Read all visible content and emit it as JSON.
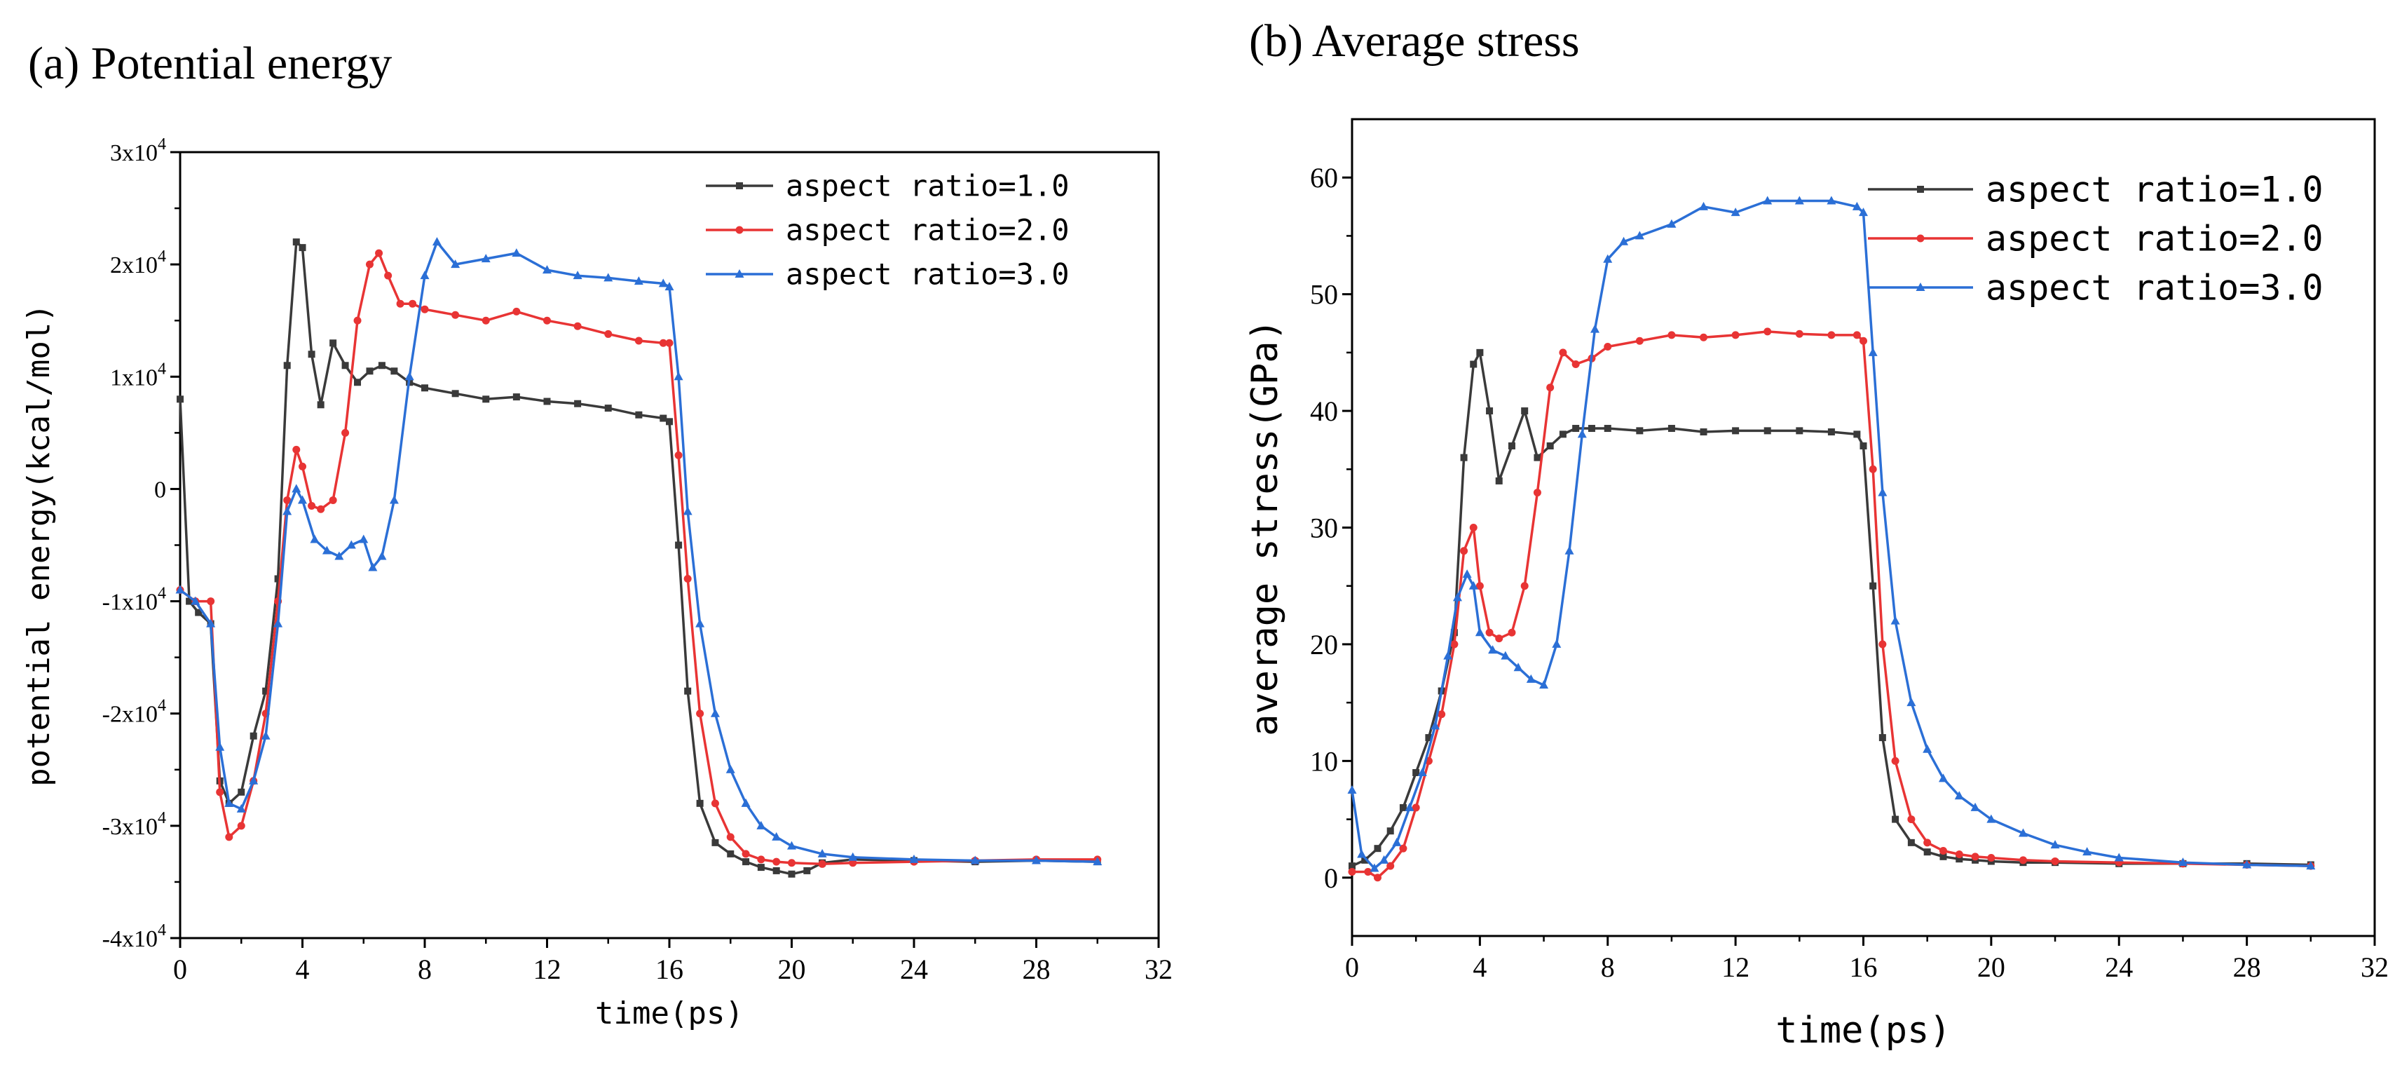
{
  "colors": {
    "series1": "#3a3a3a",
    "series2": "#e83434",
    "series3": "#2b6fd6"
  },
  "chart_data": [
    {
      "type": "line",
      "title": "(a) Potential energy",
      "xlabel": "time(ps)",
      "ylabel": "potential energy(kcal/mol)",
      "xlim": [
        0,
        32
      ],
      "ylim": [
        -40000,
        30000
      ],
      "xticks": [
        0,
        4,
        8,
        12,
        16,
        20,
        24,
        28,
        32
      ],
      "xtick_labels": [
        "0",
        "4",
        "8",
        "12",
        "16",
        "20",
        "24",
        "28",
        "32"
      ],
      "yticks": [
        -40000,
        -30000,
        -20000,
        -10000,
        0,
        10000,
        20000,
        30000
      ],
      "ytick_labels": [
        {
          "base": "-4x10",
          "exp": "4"
        },
        {
          "base": "-3x10",
          "exp": "4"
        },
        {
          "base": "-2x10",
          "exp": "4"
        },
        {
          "base": "-1x10",
          "exp": "4"
        },
        {
          "base": "0",
          "exp": ""
        },
        {
          "base": "1x10",
          "exp": "4"
        },
        {
          "base": "2x10",
          "exp": "4"
        },
        {
          "base": "3x10",
          "exp": "4"
        }
      ],
      "legend_position": "top-right",
      "series": [
        {
          "name": "aspect ratio=1.0",
          "x": [
            0,
            0.3,
            0.6,
            1.0,
            1.3,
            1.6,
            2.0,
            2.4,
            2.8,
            3.2,
            3.5,
            3.8,
            4.0,
            4.3,
            4.6,
            5.0,
            5.4,
            5.8,
            6.2,
            6.6,
            7.0,
            7.5,
            8,
            9,
            10,
            11,
            12,
            13,
            14,
            15,
            15.8,
            16.0,
            16.3,
            16.6,
            17.0,
            17.5,
            18,
            18.5,
            19,
            19.5,
            20,
            20.5,
            21,
            22,
            24,
            26,
            28,
            30
          ],
          "y": [
            8000,
            -10000,
            -11000,
            -12000,
            -26000,
            -28000,
            -27000,
            -22000,
            -18000,
            -8000,
            11000,
            22000,
            21500,
            12000,
            7500,
            13000,
            11000,
            9500,
            10500,
            11000,
            10500,
            9500,
            9000,
            8500,
            8000,
            8200,
            7800,
            7600,
            7200,
            6600,
            6300,
            6000,
            -5000,
            -18000,
            -28000,
            -31500,
            -32500,
            -33200,
            -33700,
            -34000,
            -34300,
            -34000,
            -33300,
            -33000,
            -33100,
            -33200,
            -33100,
            -33200
          ]
        },
        {
          "name": "aspect ratio=2.0",
          "x": [
            0,
            0.5,
            1.0,
            1.3,
            1.6,
            2.0,
            2.4,
            2.8,
            3.2,
            3.5,
            3.8,
            4.0,
            4.3,
            4.6,
            5.0,
            5.4,
            5.8,
            6.2,
            6.5,
            6.8,
            7.2,
            7.6,
            8,
            9,
            10,
            11,
            12,
            13,
            14,
            15,
            15.8,
            16.0,
            16.3,
            16.6,
            17.0,
            17.5,
            18,
            18.5,
            19,
            19.5,
            20,
            21,
            22,
            24,
            26,
            28,
            30
          ],
          "y": [
            -9000,
            -10000,
            -10000,
            -27000,
            -31000,
            -30000,
            -26000,
            -20000,
            -10000,
            -1000,
            3500,
            2000,
            -1500,
            -1800,
            -1000,
            5000,
            15000,
            20000,
            21000,
            19000,
            16500,
            16500,
            16000,
            15500,
            15000,
            15800,
            15000,
            14500,
            13800,
            13200,
            13000,
            13000,
            3000,
            -8000,
            -20000,
            -28000,
            -31000,
            -32500,
            -33000,
            -33200,
            -33300,
            -33400,
            -33300,
            -33200,
            -33100,
            -33000,
            -33000
          ]
        },
        {
          "name": "aspect ratio=3.0",
          "x": [
            0,
            0.5,
            1.0,
            1.3,
            1.6,
            2.0,
            2.4,
            2.8,
            3.2,
            3.5,
            3.8,
            4.0,
            4.4,
            4.8,
            5.2,
            5.6,
            6.0,
            6.3,
            6.6,
            7.0,
            7.5,
            8.0,
            8.4,
            9,
            10,
            11,
            12,
            13,
            14,
            15,
            15.8,
            16.0,
            16.3,
            16.6,
            17.0,
            17.5,
            18,
            18.5,
            19,
            19.5,
            20,
            21,
            22,
            24,
            26,
            28,
            30
          ],
          "y": [
            -9000,
            -10000,
            -12000,
            -23000,
            -28000,
            -28500,
            -26000,
            -22000,
            -12000,
            -2000,
            0,
            -1000,
            -4500,
            -5500,
            -6000,
            -5000,
            -4500,
            -7000,
            -6000,
            -1000,
            10000,
            19000,
            22000,
            20000,
            20500,
            21000,
            19500,
            19000,
            18800,
            18500,
            18300,
            18000,
            10000,
            -2000,
            -12000,
            -20000,
            -25000,
            -28000,
            -30000,
            -31000,
            -31800,
            -32500,
            -32800,
            -33000,
            -33100,
            -33100,
            -33200
          ]
        }
      ]
    },
    {
      "type": "line",
      "title": "(b) Average stress",
      "xlabel": "time(ps)",
      "ylabel": "average stress(GPa)",
      "xlim": [
        0,
        32
      ],
      "ylim": [
        -5,
        65
      ],
      "xticks": [
        0,
        4,
        8,
        12,
        16,
        20,
        24,
        28,
        32
      ],
      "xtick_labels": [
        "0",
        "4",
        "8",
        "12",
        "16",
        "20",
        "24",
        "28",
        "32"
      ],
      "yticks": [
        0,
        10,
        20,
        30,
        40,
        50,
        60
      ],
      "ytick_labels": [
        "0",
        "10",
        "20",
        "30",
        "40",
        "50",
        "60"
      ],
      "legend_position": "top-right",
      "series": [
        {
          "name": "aspect ratio=1.0",
          "x": [
            0,
            0.4,
            0.8,
            1.2,
            1.6,
            2.0,
            2.4,
            2.8,
            3.2,
            3.5,
            3.8,
            4.0,
            4.3,
            4.6,
            5.0,
            5.4,
            5.8,
            6.2,
            6.6,
            7.0,
            7.5,
            8,
            9,
            10,
            11,
            12,
            13,
            14,
            15,
            15.8,
            16.0,
            16.3,
            16.6,
            17.0,
            17.5,
            18,
            18.5,
            19,
            19.5,
            20,
            21,
            22,
            24,
            26,
            28,
            30
          ],
          "y": [
            1,
            1.5,
            2.5,
            4,
            6,
            9,
            12,
            16,
            21,
            36,
            44,
            45,
            40,
            34,
            37,
            40,
            36,
            37,
            38,
            38.5,
            38.5,
            38.5,
            38.3,
            38.5,
            38.2,
            38.3,
            38.3,
            38.3,
            38.2,
            38.0,
            37,
            25,
            12,
            5,
            3,
            2.2,
            1.8,
            1.6,
            1.5,
            1.4,
            1.3,
            1.3,
            1.2,
            1.2,
            1.2,
            1.1
          ]
        },
        {
          "name": "aspect ratio=2.0",
          "x": [
            0,
            0.5,
            0.8,
            1.2,
            1.6,
            2.0,
            2.4,
            2.8,
            3.2,
            3.5,
            3.8,
            4.0,
            4.3,
            4.6,
            5.0,
            5.4,
            5.8,
            6.2,
            6.6,
            7.0,
            7.5,
            8,
            9,
            10,
            11,
            12,
            13,
            14,
            15,
            15.8,
            16.0,
            16.3,
            16.6,
            17.0,
            17.5,
            18,
            18.5,
            19,
            19.5,
            20,
            21,
            22,
            24,
            26,
            28,
            30
          ],
          "y": [
            0.5,
            0.5,
            0,
            1,
            2.5,
            6,
            10,
            14,
            20,
            28,
            30,
            25,
            21,
            20.5,
            21,
            25,
            33,
            42,
            45,
            44,
            44.5,
            45.5,
            46,
            46.5,
            46.3,
            46.5,
            46.8,
            46.6,
            46.5,
            46.5,
            46,
            35,
            20,
            10,
            5,
            3,
            2.3,
            2,
            1.8,
            1.7,
            1.5,
            1.4,
            1.3,
            1.2,
            1.1,
            1.0
          ]
        },
        {
          "name": "aspect ratio=3.0",
          "x": [
            0,
            0.3,
            0.7,
            1.0,
            1.4,
            1.8,
            2.2,
            2.6,
            3.0,
            3.3,
            3.6,
            3.8,
            4.0,
            4.4,
            4.8,
            5.2,
            5.6,
            6.0,
            6.4,
            6.8,
            7.2,
            7.6,
            8.0,
            8.5,
            9,
            10,
            11,
            12,
            13,
            14,
            15,
            15.8,
            16.0,
            16.3,
            16.6,
            17.0,
            17.5,
            18,
            18.5,
            19,
            19.5,
            20,
            21,
            22,
            23,
            24,
            26,
            28,
            30
          ],
          "y": [
            7.5,
            2,
            0.8,
            1.5,
            3,
            6,
            9,
            13,
            19,
            24,
            26,
            25,
            21,
            19.5,
            19,
            18,
            17,
            16.5,
            20,
            28,
            38,
            47,
            53,
            54.5,
            55,
            56,
            57.5,
            57,
            58,
            58,
            58,
            57.5,
            57,
            45,
            33,
            22,
            15,
            11,
            8.5,
            7,
            6,
            5,
            3.8,
            2.8,
            2.2,
            1.7,
            1.3,
            1.1,
            1.0
          ]
        }
      ]
    }
  ]
}
